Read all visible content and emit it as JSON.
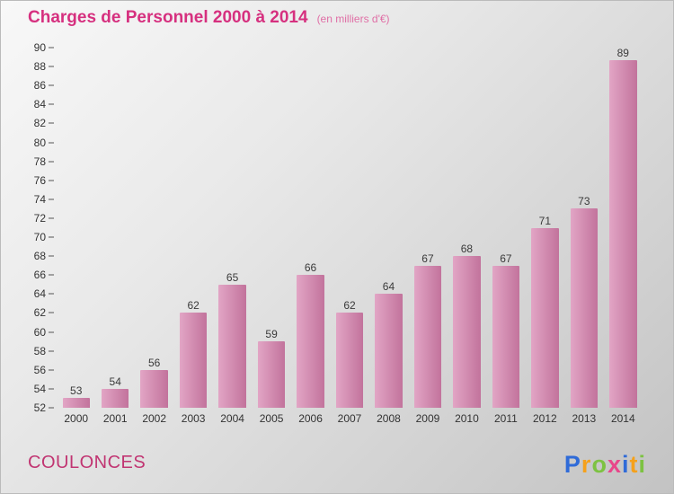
{
  "chart_data": {
    "type": "bar",
    "title": "Charges de Personnel 2000 à 2014",
    "subtitle": "(en milliers d'€)",
    "categories": [
      "2000",
      "2001",
      "2002",
      "2003",
      "2004",
      "2005",
      "2006",
      "2007",
      "2008",
      "2009",
      "2010",
      "2011",
      "2012",
      "2013",
      "2014"
    ],
    "values": [
      53,
      54,
      56,
      62,
      65,
      59,
      66,
      62,
      64,
      67,
      68,
      67,
      71,
      73,
      89
    ],
    "ylim": [
      52,
      90
    ],
    "ytick_step": 2,
    "grid": false,
    "legend": "none",
    "value_labels": true
  },
  "footer": {
    "company": "COULONCES"
  },
  "logo": {
    "text": "Proxiti",
    "letters": [
      {
        "ch": "P",
        "color": "#2f6bd8"
      },
      {
        "ch": "r",
        "color": "#f5a11b"
      },
      {
        "ch": "o",
        "color": "#7dc242"
      },
      {
        "ch": "x",
        "color": "#e8468a"
      },
      {
        "ch": "i",
        "color": "#2f6bd8"
      },
      {
        "ch": "t",
        "color": "#f5a11b"
      },
      {
        "ch": "i",
        "color": "#7dc242"
      }
    ]
  },
  "colors": {
    "title": "#d6307f",
    "subtitle": "#e06fa6",
    "bar_gradient_light": "#e2a5c5",
    "bar_gradient_dark": "#c2739c",
    "tick_text": "#333333",
    "value_text": "#3a3a3a"
  }
}
